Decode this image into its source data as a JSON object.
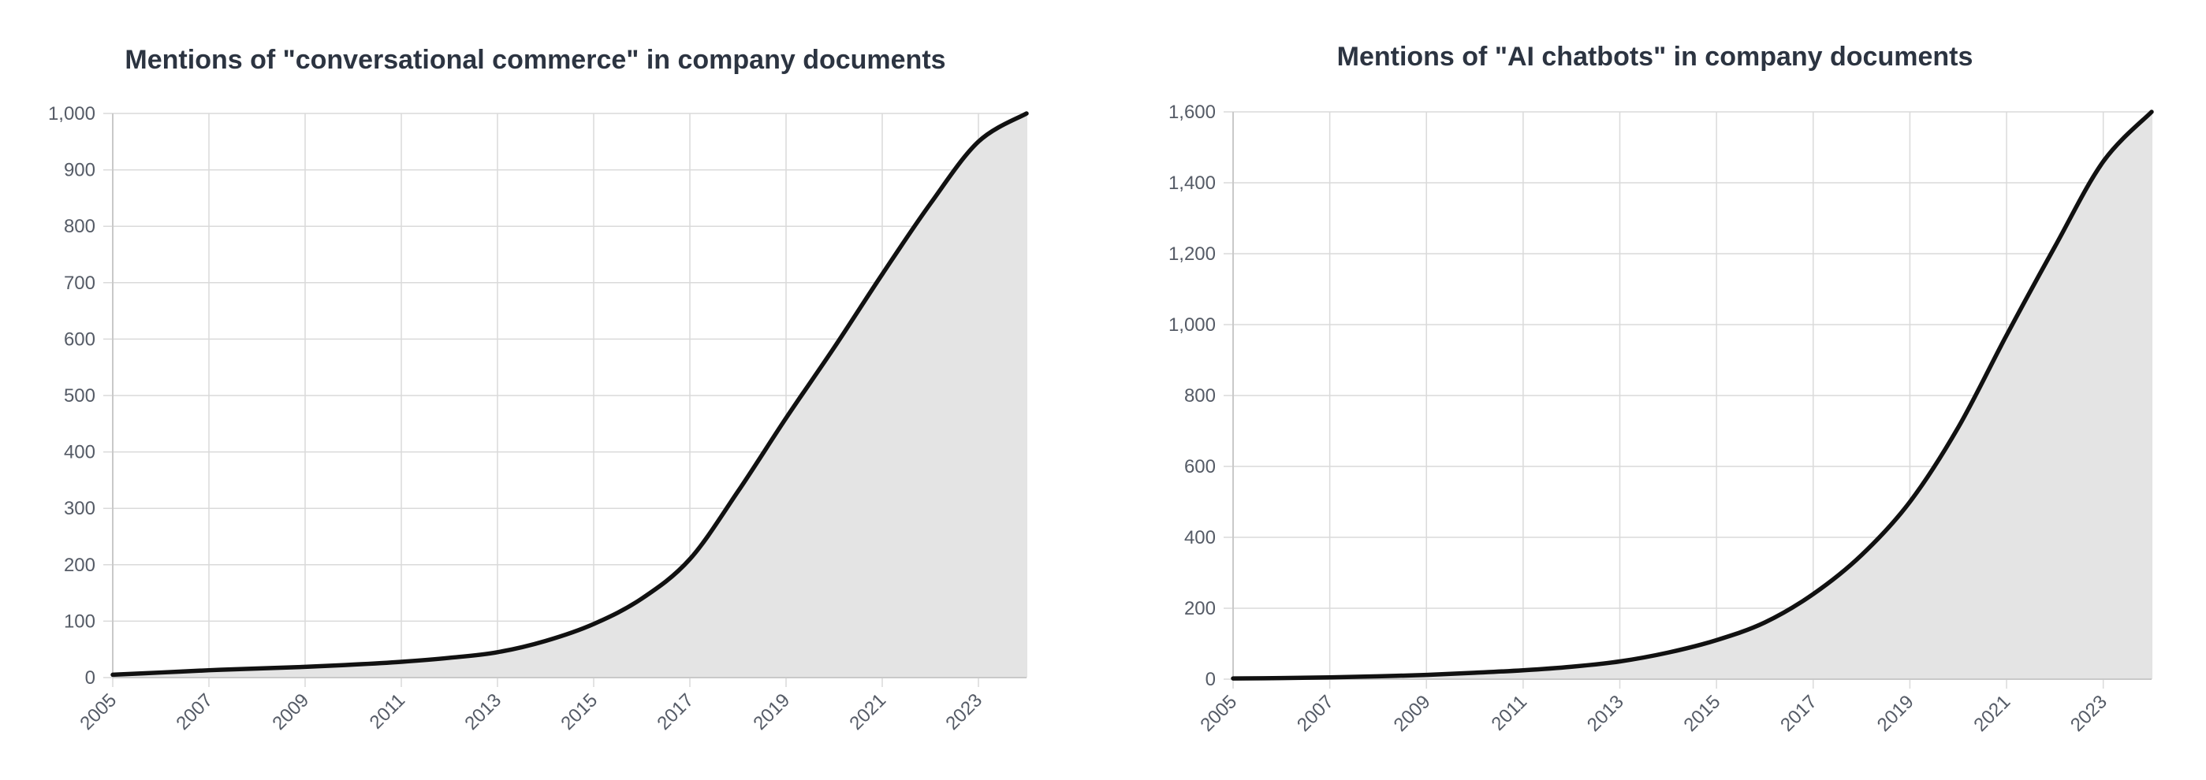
{
  "chart_data": [
    {
      "type": "area",
      "title": "Mentions of \"conversational commerce\" in company documents",
      "xlabel": "",
      "ylabel": "",
      "x": [
        2005,
        2006,
        2007,
        2008,
        2009,
        2010,
        2011,
        2012,
        2013,
        2014,
        2015,
        2016,
        2017,
        2018,
        2019,
        2020,
        2021,
        2022,
        2023,
        2024
      ],
      "series": [
        {
          "values": [
            5,
            9,
            13,
            16,
            19,
            23,
            28,
            35,
            45,
            65,
            95,
            140,
            210,
            330,
            460,
            585,
            715,
            840,
            950,
            1000
          ]
        }
      ],
      "xlim": [
        2005,
        2024
      ],
      "ylim": [
        0,
        1000
      ],
      "xticks": [
        2005,
        2007,
        2009,
        2011,
        2013,
        2015,
        2017,
        2019,
        2021,
        2023
      ],
      "xtick_labels": [
        "2005",
        "2007",
        "2009",
        "2011",
        "2013",
        "2015",
        "2017",
        "2019",
        "2021",
        "2023"
      ],
      "yticks": [
        0,
        100,
        200,
        300,
        400,
        500,
        600,
        700,
        800,
        900,
        1000
      ],
      "ytick_labels": [
        "0",
        "100",
        "200",
        "300",
        "400",
        "500",
        "600",
        "700",
        "800",
        "900",
        "1,000"
      ],
      "grid": true,
      "legend": "none",
      "colors": {
        "line": "#111111",
        "fill": "#e4e4e4",
        "grid": "#dadada"
      }
    },
    {
      "type": "area",
      "title": "Mentions of \"AI chatbots\" in company documents",
      "xlabel": "",
      "ylabel": "",
      "x": [
        2005,
        2006,
        2007,
        2008,
        2009,
        2010,
        2011,
        2012,
        2013,
        2014,
        2015,
        2016,
        2017,
        2018,
        2019,
        2020,
        2021,
        2022,
        2023,
        2024
      ],
      "series": [
        {
          "values": [
            2,
            3,
            5,
            8,
            12,
            18,
            25,
            35,
            50,
            75,
            110,
            160,
            240,
            350,
            500,
            710,
            970,
            1220,
            1460,
            1600
          ]
        }
      ],
      "xlim": [
        2005,
        2024
      ],
      "ylim": [
        0,
        1600
      ],
      "xticks": [
        2005,
        2007,
        2009,
        2011,
        2013,
        2015,
        2017,
        2019,
        2021,
        2023
      ],
      "xtick_labels": [
        "2005",
        "2007",
        "2009",
        "2011",
        "2013",
        "2015",
        "2017",
        "2019",
        "2021",
        "2023"
      ],
      "yticks": [
        0,
        200,
        400,
        600,
        800,
        1000,
        1200,
        1400,
        1600
      ],
      "ytick_labels": [
        "0",
        "200",
        "400",
        "600",
        "800",
        "1,000",
        "1,200",
        "1,400",
        "1,600"
      ],
      "grid": true,
      "legend": "none",
      "colors": {
        "line": "#111111",
        "fill": "#e4e4e4",
        "grid": "#dadada"
      }
    }
  ]
}
